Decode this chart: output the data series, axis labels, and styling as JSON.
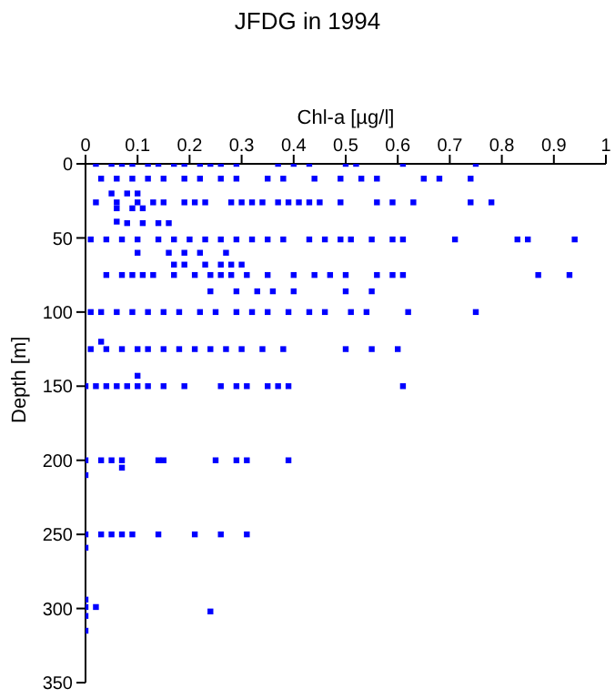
{
  "chart_data": {
    "type": "scatter",
    "title": "JFDG in 1994",
    "xlabel": "Chl-a [µg/l]",
    "ylabel": "Depth [m]",
    "color": "#0000ff",
    "marker": "square",
    "grid": false,
    "legend": false,
    "xlim": [
      0,
      1
    ],
    "xticks": [
      0,
      0.1,
      0.2,
      0.3,
      0.4,
      0.5,
      0.6,
      0.7,
      0.8,
      0.9,
      1
    ],
    "ylim": [
      350,
      0
    ],
    "yticks": [
      0,
      50,
      100,
      150,
      200,
      250,
      300,
      350
    ],
    "x": [
      0.02,
      0.05,
      0.07,
      0.09,
      0.12,
      0.14,
      0.17,
      0.19,
      0.22,
      0.24,
      0.26,
      0.29,
      0.37,
      0.4,
      0.43,
      0.5,
      0.52,
      0.61,
      0.75,
      0.03,
      0.06,
      0.09,
      0.12,
      0.15,
      0.19,
      0.22,
      0.26,
      0.29,
      0.35,
      0.38,
      0.44,
      0.49,
      0.53,
      0.56,
      0.65,
      0.68,
      0.74,
      0.05,
      0.08,
      0.1,
      0.02,
      0.06,
      0.1,
      0.13,
      0.15,
      0.19,
      0.21,
      0.23,
      0.28,
      0.3,
      0.32,
      0.34,
      0.37,
      0.39,
      0.41,
      0.43,
      0.45,
      0.49,
      0.56,
      0.59,
      0.63,
      0.74,
      0.78,
      0.06,
      0.09,
      0.11,
      0.06,
      0.08,
      0.11,
      0.14,
      0.16,
      0.01,
      0.04,
      0.07,
      0.1,
      0.14,
      0.17,
      0.2,
      0.23,
      0.26,
      0.29,
      0.32,
      0.35,
      0.38,
      0.43,
      0.46,
      0.49,
      0.51,
      0.55,
      0.59,
      0.61,
      0.71,
      0.83,
      0.85,
      0.94,
      0.1,
      0.16,
      0.19,
      0.22,
      0.27,
      0.17,
      0.19,
      0.23,
      0.26,
      0.28,
      0.3,
      0.04,
      0.07,
      0.09,
      0.11,
      0.13,
      0.17,
      0.21,
      0.24,
      0.26,
      0.28,
      0.31,
      0.35,
      0.4,
      0.44,
      0.47,
      0.5,
      0.56,
      0.59,
      0.61,
      0.87,
      0.93,
      0.24,
      0.29,
      0.33,
      0.36,
      0.4,
      0.5,
      0.55,
      0.01,
      0.03,
      0.06,
      0.09,
      0.12,
      0.15,
      0.18,
      0.22,
      0.25,
      0.29,
      0.32,
      0.35,
      0.39,
      0.43,
      0.46,
      0.51,
      0.54,
      0.62,
      0.75,
      0.03,
      0.01,
      0.04,
      0.07,
      0.1,
      0.12,
      0.15,
      0.18,
      0.21,
      0.24,
      0.27,
      0.3,
      0.34,
      0.38,
      0.5,
      0.55,
      0.6,
      0.1,
      0,
      0.02,
      0.04,
      0.06,
      0.08,
      0.1,
      0.12,
      0.15,
      0.19,
      0.26,
      0.29,
      0.31,
      0.35,
      0.37,
      0.39,
      0.61,
      0,
      0.03,
      0.05,
      0.07,
      0.14,
      0.15,
      0.25,
      0.29,
      0.31,
      0.39,
      0.07,
      0,
      0,
      0.03,
      0.05,
      0.07,
      0.09,
      0.14,
      0.21,
      0.26,
      0.31,
      0,
      0,
      0,
      0.02,
      0.24,
      0,
      0
    ],
    "values": [
      0,
      0,
      0,
      0,
      0,
      0,
      0,
      0,
      0,
      0,
      0,
      0,
      0,
      0,
      0,
      0,
      0,
      0,
      0,
      10,
      10,
      10,
      10,
      10,
      10,
      10,
      10,
      10,
      10,
      10,
      10,
      10,
      10,
      10,
      10,
      10,
      10,
      20,
      20,
      20,
      26,
      26,
      26,
      26,
      26,
      26,
      26,
      26,
      26,
      26,
      26,
      26,
      26,
      26,
      26,
      26,
      26,
      26,
      26,
      26,
      26,
      26,
      26,
      30,
      30,
      30,
      39,
      40,
      40,
      40,
      40,
      51,
      51,
      51,
      51,
      51,
      51,
      51,
      51,
      51,
      51,
      51,
      51,
      51,
      51,
      51,
      51,
      51,
      51,
      51,
      51,
      51,
      51,
      51,
      51,
      60,
      60,
      60,
      60,
      60,
      68,
      68,
      68,
      68,
      68,
      68,
      75,
      75,
      75,
      75,
      75,
      75,
      75,
      75,
      75,
      75,
      75,
      75,
      75,
      75,
      75,
      75,
      75,
      75,
      75,
      75,
      75,
      86,
      86,
      86,
      86,
      86,
      86,
      86,
      100,
      100,
      100,
      100,
      100,
      100,
      100,
      100,
      100,
      100,
      100,
      100,
      100,
      100,
      100,
      100,
      100,
      100,
      100,
      120,
      125,
      125,
      125,
      125,
      125,
      125,
      125,
      125,
      125,
      125,
      125,
      125,
      125,
      125,
      125,
      125,
      143,
      150,
      150,
      150,
      150,
      150,
      150,
      150,
      150,
      150,
      150,
      150,
      150,
      150,
      150,
      150,
      150,
      200,
      200,
      200,
      200,
      200,
      200,
      200,
      200,
      200,
      200,
      205,
      210,
      250,
      250,
      250,
      250,
      250,
      250,
      250,
      250,
      250,
      259,
      294,
      299,
      299,
      302,
      305,
      315
    ]
  }
}
